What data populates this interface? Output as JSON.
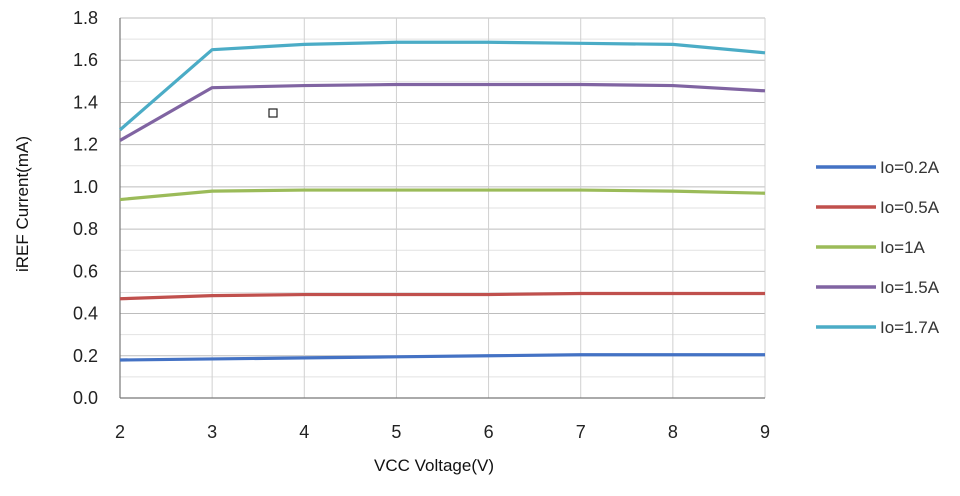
{
  "chart_data": {
    "type": "line",
    "title": "",
    "xlabel": "VCC Voltage(V)",
    "ylabel": "iREF Current(mA)",
    "x": [
      2,
      3,
      4,
      5,
      6,
      7,
      8,
      9
    ],
    "xlim": [
      2,
      9
    ],
    "ylim": [
      0,
      1.8
    ],
    "y_ticks": [
      "0.0",
      "0.2",
      "0.4",
      "0.6",
      "0.8",
      "1.0",
      "1.2",
      "1.4",
      "1.6",
      "1.8"
    ],
    "x_ticks": [
      "2",
      "3",
      "4",
      "5",
      "6",
      "7",
      "8",
      "9"
    ],
    "grid": true,
    "legend_position": "right",
    "series": [
      {
        "name": "Io=0.2A",
        "color": "#4472C4",
        "values": [
          0.18,
          0.185,
          0.19,
          0.195,
          0.2,
          0.205,
          0.205,
          0.205
        ]
      },
      {
        "name": "Io=0.5A",
        "color": "#C0504D",
        "values": [
          0.47,
          0.485,
          0.49,
          0.49,
          0.49,
          0.495,
          0.495,
          0.495
        ]
      },
      {
        "name": "Io=1A",
        "color": "#9BBB59",
        "values": [
          0.94,
          0.98,
          0.985,
          0.985,
          0.985,
          0.985,
          0.98,
          0.97
        ]
      },
      {
        "name": "Io=1.5A",
        "color": "#8064A2",
        "values": [
          1.22,
          1.47,
          1.48,
          1.485,
          1.485,
          1.485,
          1.48,
          1.455
        ]
      },
      {
        "name": "Io=1.7A",
        "color": "#4BACC6",
        "values": [
          1.27,
          1.65,
          1.675,
          1.685,
          1.685,
          1.68,
          1.675,
          1.635
        ]
      }
    ]
  }
}
